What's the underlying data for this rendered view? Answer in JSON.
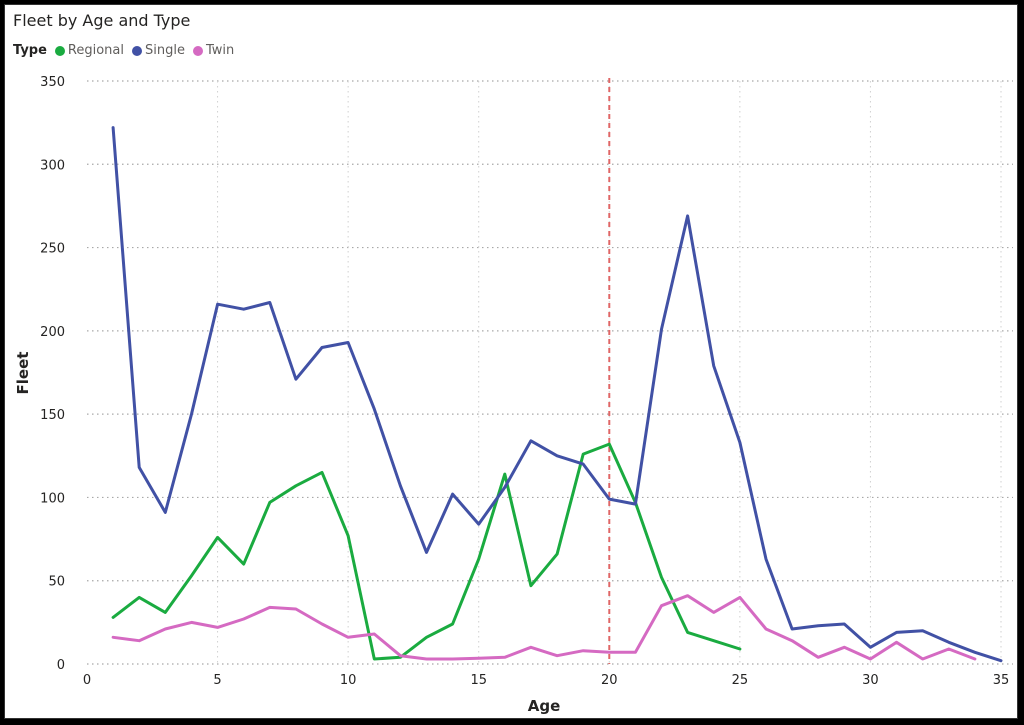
{
  "chart_data": {
    "type": "line",
    "title": "Fleet by Age and Type",
    "xlabel": "Age",
    "ylabel": "Fleet",
    "legend_title": "Type",
    "legend_position": "top-left",
    "grid": true,
    "xlim": [
      0,
      35
    ],
    "ylim": [
      0,
      350
    ],
    "x_ticks": [
      0,
      5,
      10,
      15,
      20,
      25,
      30,
      35
    ],
    "y_ticks": [
      0,
      50,
      100,
      150,
      200,
      250,
      300,
      350
    ],
    "reference_line": {
      "x": 20,
      "color": "#e06666",
      "style": "dashed"
    },
    "series": [
      {
        "name": "Regional",
        "color": "#1aab40",
        "x": [
          1,
          2,
          3,
          4,
          5,
          6,
          7,
          8,
          9,
          10,
          11,
          12,
          13,
          14,
          15,
          16,
          17,
          18,
          19,
          20,
          21,
          22,
          23,
          24,
          25
        ],
        "values": [
          28,
          40,
          31,
          53,
          76,
          60,
          97,
          107,
          115,
          77,
          3,
          4,
          16,
          24,
          63,
          114,
          47,
          66,
          126,
          132,
          97,
          52,
          19,
          14,
          9
        ]
      },
      {
        "name": "Single",
        "color": "#4151a5",
        "x": [
          1,
          2,
          3,
          4,
          5,
          6,
          7,
          8,
          9,
          10,
          11,
          12,
          13,
          14,
          15,
          16,
          17,
          18,
          19,
          20,
          21,
          22,
          23,
          24,
          25,
          26,
          27,
          28,
          29,
          30,
          31,
          32,
          33,
          34,
          35
        ],
        "values": [
          322,
          118,
          91,
          150,
          216,
          213,
          217,
          171,
          190,
          193,
          153,
          107,
          67,
          102,
          84,
          106,
          134,
          125,
          120,
          99,
          96,
          201,
          269,
          179,
          133,
          63,
          21,
          23,
          24,
          10,
          19,
          20,
          13,
          7,
          2
        ]
      },
      {
        "name": "Twin",
        "color": "#d56ac2",
        "x": [
          1,
          2,
          3,
          4,
          5,
          6,
          7,
          8,
          9,
          10,
          11,
          12,
          13,
          14,
          15,
          16,
          17,
          18,
          19,
          20,
          21,
          22,
          23,
          24,
          25,
          26,
          27,
          28,
          29,
          30,
          31,
          32,
          33,
          34
        ],
        "values": [
          16,
          14,
          21,
          25,
          22,
          27,
          34,
          33,
          24,
          16,
          18,
          5,
          3,
          3,
          3.5,
          4,
          10,
          5,
          8,
          7,
          7,
          35,
          41,
          31,
          40,
          21,
          14,
          4,
          10,
          3,
          13,
          3,
          9,
          3
        ]
      }
    ]
  }
}
